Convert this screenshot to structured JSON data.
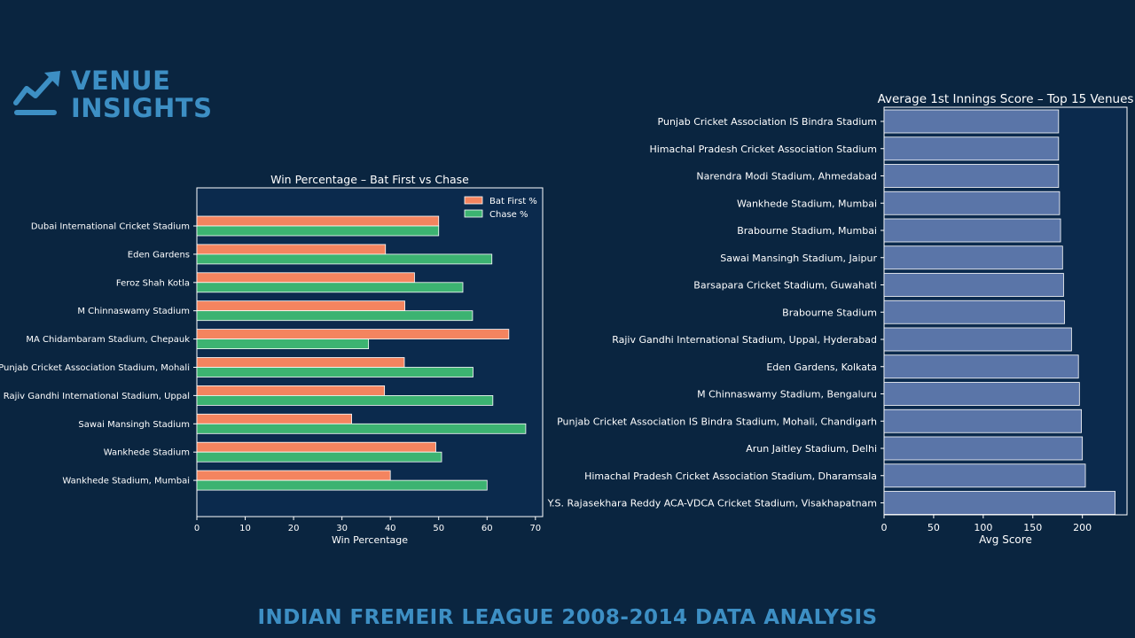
{
  "logo": {
    "line1": "VENUE",
    "line2": "INSIGHTS",
    "icon": "trend-up-icon",
    "color": "#3d8fc4"
  },
  "footer": {
    "text": "INDIAN FREMEIR LEAGUE 2008-2014 DATA ANALYSIS"
  },
  "colors": {
    "background": "#0a2540",
    "plot_bg": "#0b2a4d",
    "bat_first": "#f4845f",
    "chase": "#3cb371",
    "avg_bar": "#5a75a8",
    "accent": "#3d8fc4"
  },
  "chart_data": [
    {
      "type": "bar",
      "orientation": "horizontal",
      "title": "Win Percentage – Bat First vs Chase",
      "xlabel": "Win Percentage",
      "ylabel": "",
      "xlim": [
        0,
        71.5
      ],
      "xticks": [
        0,
        10,
        20,
        30,
        40,
        50,
        60,
        70
      ],
      "legend": "top-right",
      "grid": false,
      "categories": [
        "Dubai International Cricket Stadium",
        "Eden Gardens",
        "Feroz Shah Kotla",
        "M Chinnaswamy Stadium",
        "MA Chidambaram Stadium, Chepauk",
        "Punjab Cricket Association Stadium, Mohali",
        "Rajiv Gandhi International Stadium, Uppal",
        "Sawai Mansingh Stadium",
        "Wankhede Stadium",
        "Wankhede Stadium, Mumbai"
      ],
      "series": [
        {
          "name": "Bat First %",
          "values": [
            50,
            39,
            45,
            43,
            64.5,
            42.9,
            38.8,
            32,
            49.4,
            40
          ]
        },
        {
          "name": "Chase %",
          "values": [
            50,
            61,
            55,
            57,
            35.5,
            57.1,
            61.2,
            68,
            50.6,
            60
          ]
        }
      ]
    },
    {
      "type": "bar",
      "orientation": "horizontal",
      "title": "Average 1st Innings Score – Top 15 Venues",
      "xlabel": "Avg Score",
      "ylabel": "",
      "xlim": [
        0,
        245
      ],
      "xticks": [
        0,
        50,
        100,
        150,
        200
      ],
      "grid": false,
      "categories": [
        "Punjab Cricket Association IS Bindra Stadium",
        "Himachal Pradesh Cricket Association Stadium",
        "Narendra Modi Stadium, Ahmedabad",
        "Wankhede Stadium, Mumbai",
        "Brabourne Stadium, Mumbai",
        "Sawai Mansingh Stadium, Jaipur",
        "Barsapara Cricket Stadium, Guwahati",
        "Brabourne Stadium",
        "Rajiv Gandhi International Stadium, Uppal, Hyderabad",
        "Eden Gardens, Kolkata",
        "M Chinnaswamy Stadium, Bengaluru",
        "Punjab Cricket Association IS Bindra Stadium, Mohali, Chandigarh",
        "Arun Jaitley Stadium, Delhi",
        "Himachal Pradesh Cricket Association Stadium, Dharamsala",
        "Dr. Y.S. Rajasekhara Reddy ACA-VDCA Cricket Stadium, Visakhapatnam"
      ],
      "values": [
        176,
        176,
        176,
        177,
        178,
        180,
        181,
        182,
        189,
        196,
        197,
        199,
        200,
        203,
        233
      ]
    }
  ]
}
